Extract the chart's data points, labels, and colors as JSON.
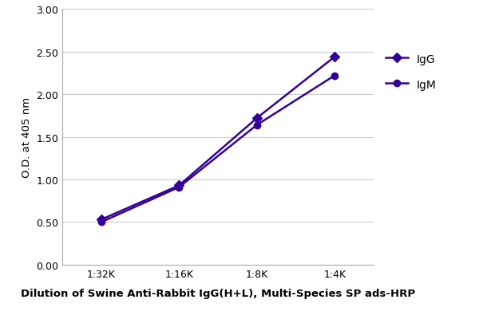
{
  "x_labels": [
    "1:32K",
    "1:16K",
    "1:8K",
    "1:4K"
  ],
  "x_values": [
    0,
    1,
    2,
    3
  ],
  "IgG_values": [
    0.53,
    0.93,
    1.72,
    2.44
  ],
  "IgM_values": [
    0.5,
    0.91,
    1.64,
    2.22
  ],
  "IgG_color": "#330099",
  "IgM_color": "#330099",
  "ylabel": "O.D. at 405 nm",
  "xlabel": "Dilution of Swine Anti-Rabbit IgG(H+L), Multi-Species SP ads-HRP",
  "ylim": [
    0.0,
    3.0
  ],
  "yticks": [
    0.0,
    0.5,
    1.0,
    1.5,
    2.0,
    2.5,
    3.0
  ],
  "ytick_labels": [
    "0.00",
    "0.50",
    "1.00",
    "1.50",
    "2.00",
    "2.50",
    "3.00"
  ],
  "legend_labels": [
    "IgG",
    "IgM"
  ],
  "marker_IgG": "D",
  "marker_IgM": "o",
  "background_color": "#ffffff",
  "grid_color": "#cccccc",
  "font_color": "#000000",
  "axis_label_fontsize": 9.5,
  "tick_fontsize": 9,
  "legend_fontsize": 10,
  "markersize": 6,
  "linewidth": 1.8
}
